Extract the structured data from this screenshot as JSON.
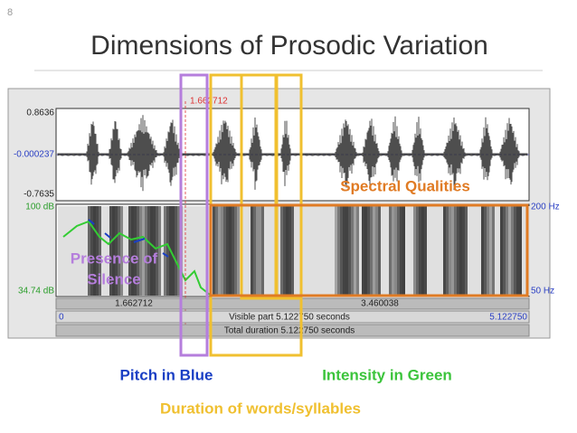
{
  "slide": {
    "number": "8",
    "title": "Dimensions of Prosodic Variation"
  },
  "praat": {
    "wave_labels": [
      "0.8636",
      "-0.000237",
      "-0.7635"
    ],
    "cursor": "1.662712",
    "intensity_labels": [
      "100 dB",
      "34.74 dB"
    ],
    "pitch_labels": [
      "200 Hz",
      "50 Hz"
    ],
    "selection": [
      "1.662712",
      "3.460038"
    ],
    "start": "0",
    "end": "5.122750",
    "visible": "Visible part 5.122750 seconds",
    "total": "Total duration 5.122750 seconds"
  },
  "annotations": {
    "spectral": "Spectral Qualities",
    "silence": [
      "Presence of",
      "Silence"
    ],
    "pitch": "Pitch in Blue",
    "intensity": "Intensity in Green",
    "duration": "Duration of words/syllables"
  }
}
